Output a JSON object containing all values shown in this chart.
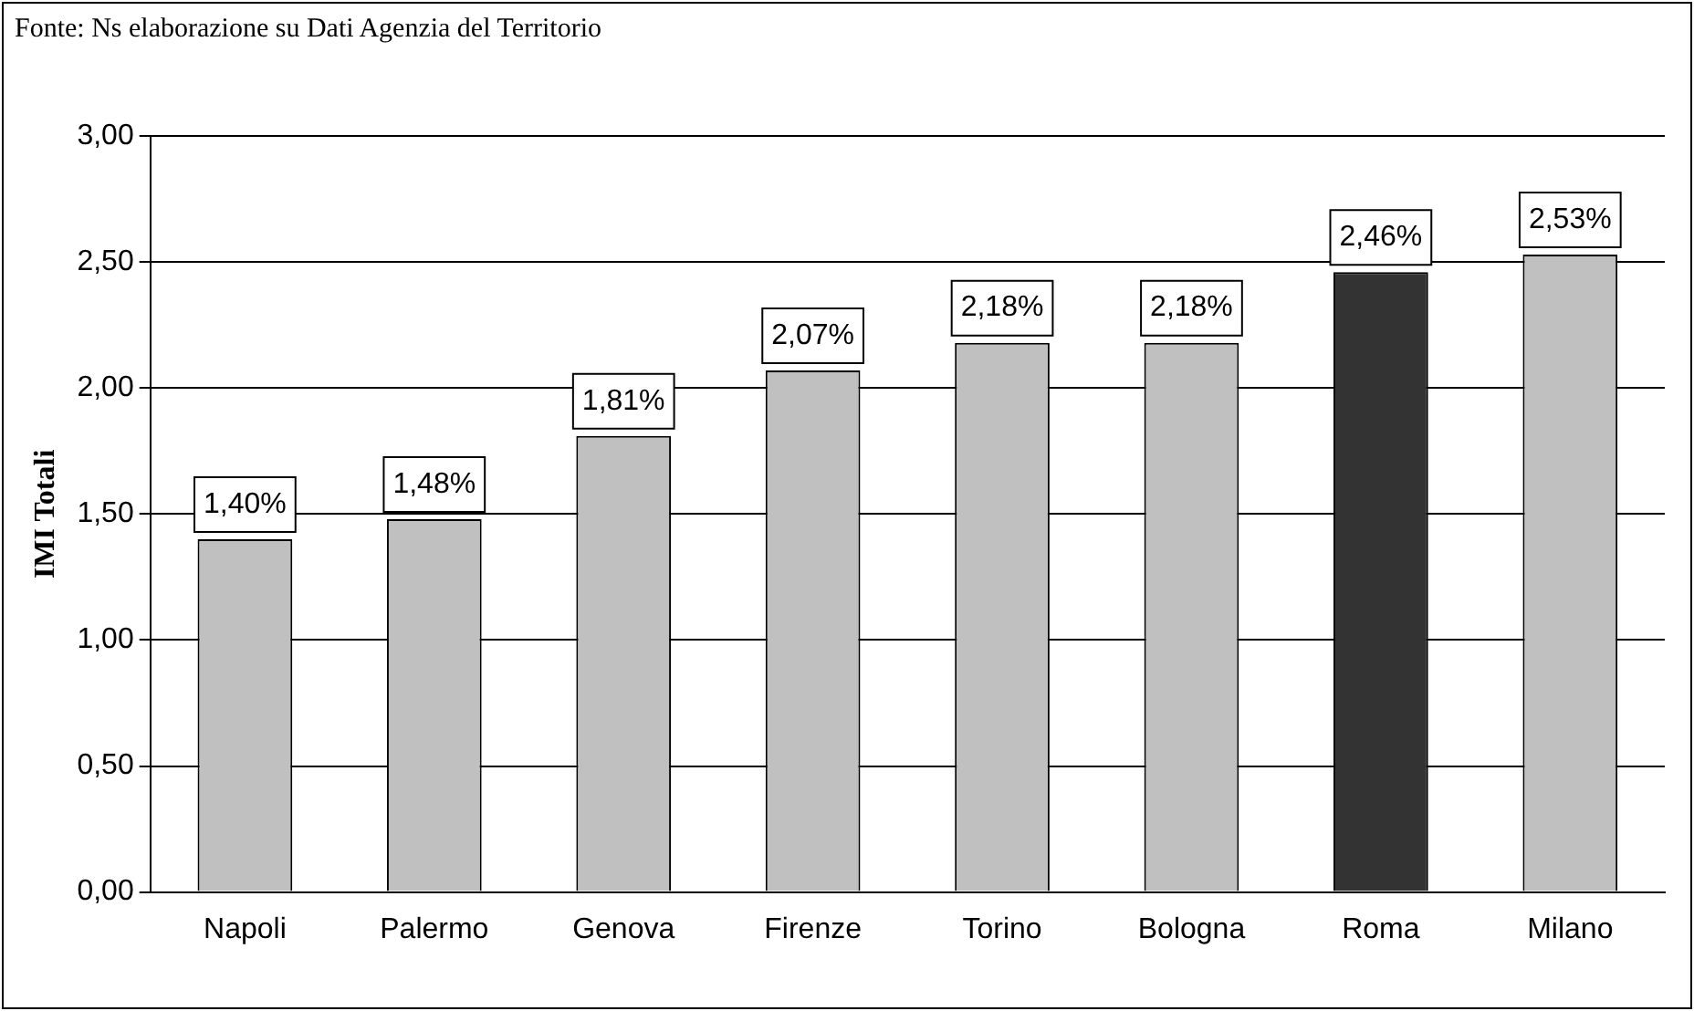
{
  "chart_data": {
    "type": "bar",
    "ylabel": "IMI Totali",
    "annotations": [
      "Fonte: Ns elaborazione su Dati Agenzia del Territorio"
    ],
    "categories": [
      "Napoli",
      "Palermo",
      "Genova",
      "Firenze",
      "Torino",
      "Bologna",
      "Roma",
      "Milano"
    ],
    "values": [
      1.4,
      1.48,
      1.81,
      2.07,
      2.18,
      2.18,
      2.46,
      2.53
    ],
    "colors": [
      "#c0c0c0",
      "#c0c0c0",
      "#c0c0c0",
      "#c0c0c0",
      "#c0c0c0",
      "#c0c0c0",
      "#333333",
      "#c0c0c0"
    ],
    "value_labels": [
      "1,40%",
      "1,48%",
      "1,81%",
      "2,07%",
      "2,18%",
      "2,18%",
      "2,46%",
      "2,53%"
    ],
    "ylim": [
      0,
      3
    ],
    "yticks": [
      {
        "value": 0,
        "label": "0,00"
      },
      {
        "value": 0.5,
        "label": "0,50"
      },
      {
        "value": 1,
        "label": "1,00"
      },
      {
        "value": 1.5,
        "label": "1,50"
      },
      {
        "value": 2,
        "label": "2,00"
      },
      {
        "value": 2.5,
        "label": "2,50"
      },
      {
        "value": 3,
        "label": "3,00"
      }
    ],
    "grid": "y",
    "legend": false
  }
}
